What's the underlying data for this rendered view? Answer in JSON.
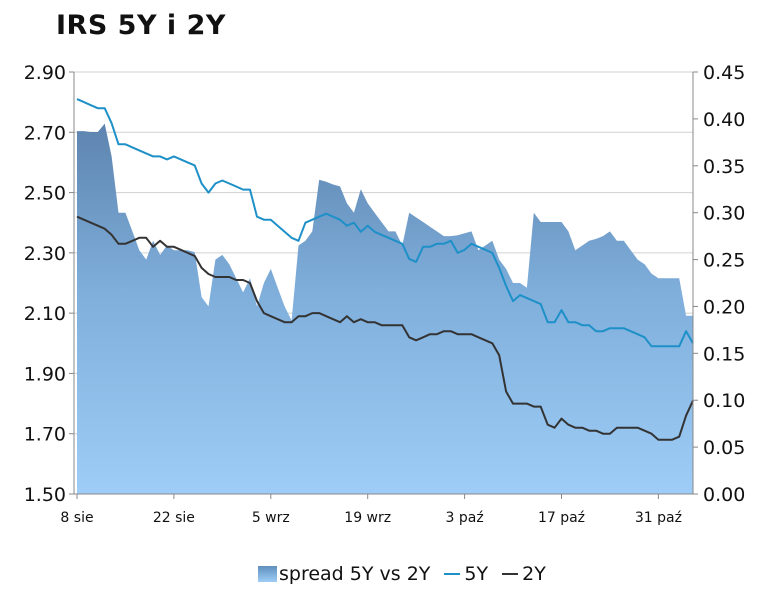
{
  "title": "IRS 5Y i 2Y",
  "chart_data": {
    "type": "area+line",
    "title": "IRS 5Y i 2Y",
    "x_ticks": [
      "8 sie",
      "22 sie",
      "5 wrz",
      "19 wrz",
      "3 paź",
      "17 paź",
      "31 paź"
    ],
    "left_axis": {
      "ticks": [
        "2.90",
        "2.70",
        "2.50",
        "2.30",
        "2.10",
        "1.90",
        "1.70",
        "1.50"
      ],
      "ylim": [
        1.5,
        2.9
      ]
    },
    "right_axis": {
      "ticks": [
        "0.45",
        "0.40",
        "0.35",
        "0.30",
        "0.25",
        "0.20",
        "0.15",
        "0.10",
        "0.05",
        "0.00"
      ],
      "ylim": [
        0,
        0.45
      ]
    },
    "x": [
      0,
      1,
      2,
      3,
      4,
      5,
      6,
      7,
      8,
      9,
      10,
      11,
      12,
      13,
      14,
      15,
      16,
      17,
      18,
      19,
      20,
      21,
      22,
      23,
      24,
      25,
      26,
      27,
      28,
      29,
      30,
      31,
      32,
      33,
      34,
      35,
      36,
      37,
      38,
      39,
      40,
      41,
      42,
      43,
      44,
      45,
      46,
      47,
      48,
      49,
      50,
      51,
      52,
      53,
      54,
      55,
      56,
      57,
      58,
      59,
      60,
      61,
      62,
      63,
      64,
      65,
      66,
      67,
      68,
      69,
      70,
      71,
      72,
      73,
      74,
      75,
      76,
      77,
      78,
      79,
      80,
      81,
      82,
      83,
      84,
      85,
      86,
      87,
      88,
      89
    ],
    "series": [
      {
        "name": "spread 5Y vs 2Y",
        "kind": "area",
        "axis": "right",
        "color": "#6f97c2",
        "values": [
          0.387,
          0.387,
          0.386,
          0.386,
          0.395,
          0.36,
          0.3,
          0.3,
          0.28,
          0.26,
          0.25,
          0.27,
          0.255,
          0.265,
          0.26,
          0.26,
          0.26,
          0.258,
          0.21,
          0.2,
          0.25,
          0.255,
          0.245,
          0.23,
          0.215,
          0.23,
          0.2,
          0.225,
          0.24,
          0.22,
          0.2,
          0.185,
          0.265,
          0.27,
          0.28,
          0.335,
          0.333,
          0.33,
          0.328,
          0.31,
          0.3,
          0.325,
          0.31,
          0.3,
          0.29,
          0.28,
          0.28,
          0.265,
          0.3,
          0.295,
          0.29,
          0.285,
          0.28,
          0.275,
          0.275,
          0.276,
          0.278,
          0.28,
          0.26,
          0.265,
          0.27,
          0.25,
          0.24,
          0.225,
          0.225,
          0.22,
          0.3,
          0.29,
          0.29,
          0.29,
          0.29,
          0.28,
          0.26,
          0.265,
          0.27,
          0.272,
          0.275,
          0.28,
          0.27,
          0.27,
          0.26,
          0.25,
          0.245,
          0.235,
          0.23,
          0.23,
          0.23,
          0.23,
          0.19,
          0.19
        ]
      },
      {
        "name": "5Y",
        "kind": "line",
        "axis": "left",
        "color": "#1e90c8",
        "values": [
          2.81,
          2.8,
          2.79,
          2.78,
          2.78,
          2.73,
          2.66,
          2.66,
          2.65,
          2.64,
          2.63,
          2.62,
          2.62,
          2.61,
          2.62,
          2.61,
          2.6,
          2.59,
          2.53,
          2.5,
          2.53,
          2.54,
          2.53,
          2.52,
          2.51,
          2.51,
          2.42,
          2.41,
          2.41,
          2.39,
          2.37,
          2.35,
          2.34,
          2.4,
          2.41,
          2.42,
          2.43,
          2.42,
          2.41,
          2.39,
          2.4,
          2.37,
          2.39,
          2.37,
          2.36,
          2.35,
          2.34,
          2.33,
          2.28,
          2.27,
          2.32,
          2.32,
          2.33,
          2.33,
          2.34,
          2.3,
          2.31,
          2.33,
          2.32,
          2.31,
          2.3,
          2.25,
          2.19,
          2.14,
          2.16,
          2.15,
          2.14,
          2.13,
          2.07,
          2.07,
          2.11,
          2.07,
          2.07,
          2.06,
          2.06,
          2.04,
          2.04,
          2.05,
          2.05,
          2.05,
          2.04,
          2.03,
          2.02,
          1.99,
          1.99,
          1.99,
          1.99,
          1.99,
          2.04,
          2.0
        ]
      },
      {
        "name": "2Y",
        "kind": "line",
        "axis": "left",
        "color": "#333333",
        "values": [
          2.42,
          2.41,
          2.4,
          2.39,
          2.38,
          2.36,
          2.33,
          2.33,
          2.34,
          2.35,
          2.35,
          2.32,
          2.34,
          2.32,
          2.32,
          2.31,
          2.3,
          2.29,
          2.25,
          2.23,
          2.22,
          2.22,
          2.22,
          2.21,
          2.21,
          2.2,
          2.14,
          2.1,
          2.09,
          2.08,
          2.07,
          2.07,
          2.09,
          2.09,
          2.1,
          2.1,
          2.09,
          2.08,
          2.07,
          2.09,
          2.07,
          2.08,
          2.07,
          2.07,
          2.06,
          2.06,
          2.06,
          2.06,
          2.02,
          2.01,
          2.02,
          2.03,
          2.03,
          2.04,
          2.04,
          2.03,
          2.03,
          2.03,
          2.02,
          2.01,
          2.0,
          1.96,
          1.84,
          1.8,
          1.8,
          1.8,
          1.79,
          1.79,
          1.73,
          1.72,
          1.75,
          1.73,
          1.72,
          1.72,
          1.71,
          1.71,
          1.7,
          1.7,
          1.72,
          1.72,
          1.72,
          1.72,
          1.71,
          1.7,
          1.68,
          1.68,
          1.68,
          1.69,
          1.76,
          1.81
        ]
      }
    ],
    "legend": "bottom",
    "grid": "horizontal"
  }
}
